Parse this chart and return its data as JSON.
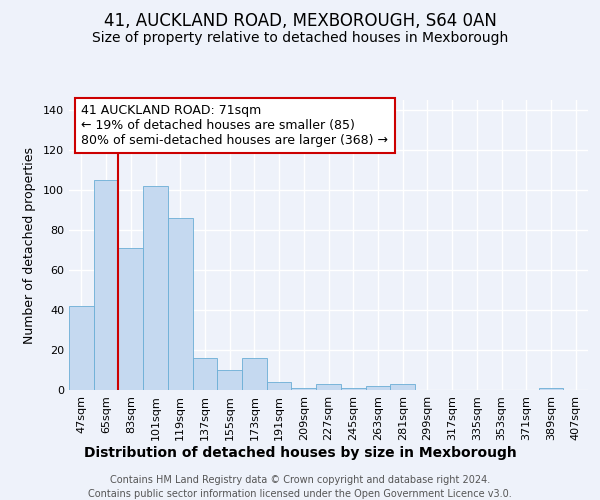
{
  "title": "41, AUCKLAND ROAD, MEXBOROUGH, S64 0AN",
  "subtitle": "Size of property relative to detached houses in Mexborough",
  "xlabel": "Distribution of detached houses by size in Mexborough",
  "ylabel": "Number of detached properties",
  "bar_values": [
    42,
    105,
    71,
    102,
    86,
    16,
    10,
    16,
    4,
    1,
    3,
    1,
    2,
    3,
    0,
    0,
    0,
    0,
    0,
    1,
    0
  ],
  "bin_labels": [
    "47sqm",
    "65sqm",
    "83sqm",
    "101sqm",
    "119sqm",
    "137sqm",
    "155sqm",
    "173sqm",
    "191sqm",
    "209sqm",
    "227sqm",
    "245sqm",
    "263sqm",
    "281sqm",
    "299sqm",
    "317sqm",
    "335sqm",
    "353sqm",
    "371sqm",
    "389sqm",
    "407sqm"
  ],
  "bar_color": "#c5d9f0",
  "bar_edge_color": "#6baed6",
  "ylim": [
    0,
    145
  ],
  "yticks": [
    0,
    20,
    40,
    60,
    80,
    100,
    120,
    140
  ],
  "red_line_x": 1.5,
  "red_line_color": "#cc0000",
  "annotation_line1": "41 AUCKLAND ROAD: 71sqm",
  "annotation_line2": "← 19% of detached houses are smaller (85)",
  "annotation_line3": "80% of semi-detached houses are larger (368) →",
  "annotation_box_color": "#ffffff",
  "annotation_box_edge": "#cc0000",
  "background_color": "#eef2fa",
  "grid_color": "#ffffff",
  "title_fontsize": 12,
  "subtitle_fontsize": 10,
  "tick_fontsize": 8,
  "ylabel_fontsize": 9,
  "xlabel_fontsize": 10,
  "annotation_fontsize": 9,
  "footer_fontsize": 7,
  "footer_line1": "Contains HM Land Registry data © Crown copyright and database right 2024.",
  "footer_line2": "Contains public sector information licensed under the Open Government Licence v3.0."
}
